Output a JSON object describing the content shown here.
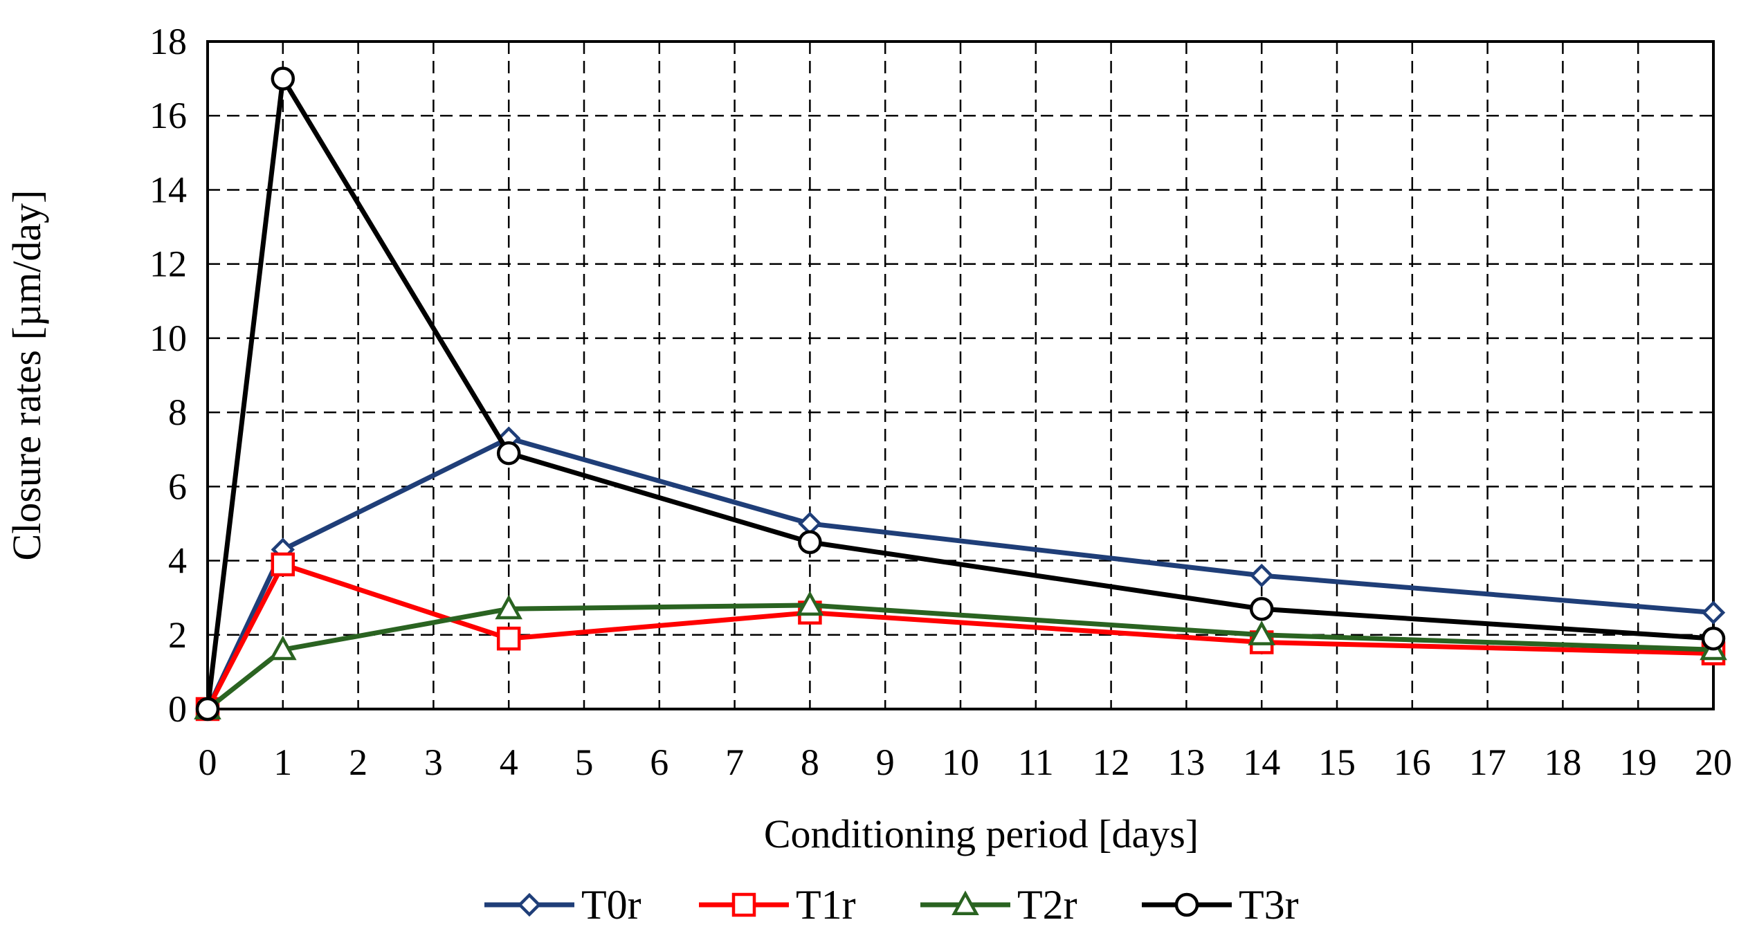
{
  "chart_data": {
    "type": "line",
    "title": "",
    "xlabel": "Conditioning period [days]",
    "ylabel": "Closure rates [µm/day]",
    "xlim": [
      0,
      20
    ],
    "ylim": [
      0,
      18
    ],
    "xticks": [
      0,
      1,
      2,
      3,
      4,
      5,
      6,
      7,
      8,
      9,
      10,
      11,
      12,
      13,
      14,
      15,
      16,
      17,
      18,
      19,
      20
    ],
    "yticks": [
      0,
      2,
      4,
      6,
      8,
      10,
      12,
      14,
      16,
      18
    ],
    "grid": true,
    "legend_position": "bottom",
    "series": [
      {
        "name": "T0r",
        "color": "#1f3e78",
        "marker": "diamond",
        "x": [
          0,
          1,
          4,
          8,
          14,
          20
        ],
        "y": [
          0,
          4.3,
          7.3,
          5.0,
          3.6,
          2.6
        ]
      },
      {
        "name": "T1r",
        "color": "#ff0000",
        "marker": "square",
        "x": [
          0,
          1,
          4,
          8,
          14,
          20
        ],
        "y": [
          0,
          3.9,
          1.9,
          2.6,
          1.8,
          1.5
        ]
      },
      {
        "name": "T2r",
        "color": "#2a6321",
        "marker": "triangle",
        "x": [
          0,
          1,
          4,
          8,
          14,
          20
        ],
        "y": [
          0,
          1.6,
          2.7,
          2.8,
          2.0,
          1.6
        ]
      },
      {
        "name": "T3r",
        "color": "#000000",
        "marker": "circle",
        "x": [
          0,
          1,
          4,
          8,
          14,
          20
        ],
        "y": [
          0,
          17.0,
          6.9,
          4.5,
          2.7,
          1.9
        ]
      }
    ]
  }
}
